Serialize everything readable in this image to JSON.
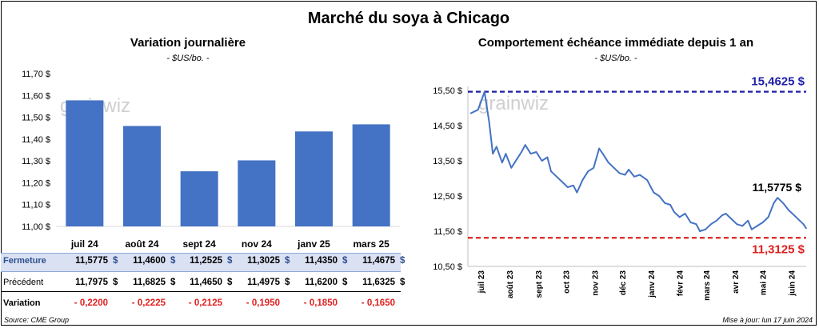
{
  "title": "Marché du soya à Chicago",
  "left": {
    "title": "Variation journalière",
    "units": "- $US/bo. -"
  },
  "right": {
    "title": "Comportement  échéance immédiate depuis 1 an",
    "units": "- $US/bo. -",
    "high_label": "15,4625 $",
    "low_label": "11,3125 $",
    "last_label": "11,5775 $"
  },
  "table": {
    "row_labels": [
      "Fermeture",
      "Précédent",
      "Variation"
    ],
    "currency": "$",
    "fermeture": [
      "11,5775",
      "11,4600",
      "11,2525",
      "11,3025",
      "11,4350",
      "11,4675"
    ],
    "precedent": [
      "11,7975",
      "11,6825",
      "11,4650",
      "11,4975",
      "11,6200",
      "11,6325"
    ],
    "variation": [
      "- 0,2200",
      "- 0,2225",
      "- 0,2125",
      "- 0,1950",
      "- 0,1850",
      "- 0,1650"
    ]
  },
  "watermark": "grainwiz",
  "source": "Source: CME Group",
  "updated": "Mise à jour: lun 17 juin 2024",
  "colors": {
    "bar": "#4472C4",
    "line": "#4472C4",
    "high": "#1F1FA8",
    "low": "#E02020",
    "table_band": "#D9E1F2"
  },
  "chart_data": [
    {
      "type": "bar",
      "title": "Variation journalière",
      "ylabel": "$US/bo.",
      "categories": [
        "juil 24",
        "août 24",
        "sept 24",
        "nov 24",
        "janv 25",
        "mars 25"
      ],
      "values": [
        11.5775,
        11.46,
        11.2525,
        11.3025,
        11.435,
        11.4675
      ],
      "ylim": [
        11.0,
        11.7
      ],
      "yticks": [
        "11,00 $",
        "11,10 $",
        "11,20 $",
        "11,30 $",
        "11,40 $",
        "11,50 $",
        "11,60 $",
        "11,70 $"
      ],
      "grid": false
    },
    {
      "type": "line",
      "title": "Comportement  échéance immédiate depuis 1 an",
      "ylabel": "$US/bo.",
      "ylim": [
        10.5,
        15.5
      ],
      "yticks": [
        "10,50 $",
        "11,50 $",
        "12,50 $",
        "13,50 $",
        "14,50 $",
        "15,50 $"
      ],
      "xticks": [
        "juil 23",
        "août 23",
        "sept 23",
        "oct 23",
        "nov 23",
        "déc 23",
        "janv 24",
        "févr 24",
        "mars 24",
        "avr 24",
        "mai 24",
        "juin 24"
      ],
      "x": [
        "2023-06-20",
        "2023-06-28",
        "2023-07-05",
        "2023-07-10",
        "2023-07-14",
        "2023-07-18",
        "2023-07-24",
        "2023-07-28",
        "2023-08-03",
        "2023-08-09",
        "2023-08-14",
        "2023-08-18",
        "2023-08-24",
        "2023-08-30",
        "2023-09-05",
        "2023-09-11",
        "2023-09-15",
        "2023-09-21",
        "2023-09-27",
        "2023-10-03",
        "2023-10-09",
        "2023-10-13",
        "2023-10-19",
        "2023-10-25",
        "2023-10-31",
        "2023-11-06",
        "2023-11-10",
        "2023-11-16",
        "2023-11-22",
        "2023-11-28",
        "2023-12-04",
        "2023-12-08",
        "2023-12-14",
        "2023-12-20",
        "2023-12-28",
        "2024-01-04",
        "2024-01-10",
        "2024-01-16",
        "2024-01-22",
        "2024-01-26",
        "2024-02-01",
        "2024-02-07",
        "2024-02-13",
        "2024-02-19",
        "2024-02-23",
        "2024-02-29",
        "2024-03-06",
        "2024-03-12",
        "2024-03-18",
        "2024-03-22",
        "2024-03-28",
        "2024-04-03",
        "2024-04-09",
        "2024-04-15",
        "2024-04-19",
        "2024-04-25",
        "2024-05-01",
        "2024-05-07",
        "2024-05-13",
        "2024-05-17",
        "2024-05-23",
        "2024-05-29",
        "2024-06-04",
        "2024-06-10",
        "2024-06-14",
        "2024-06-17"
      ],
      "values": [
        14.85,
        14.95,
        15.46,
        14.6,
        13.7,
        13.9,
        13.45,
        13.7,
        13.3,
        13.55,
        13.75,
        13.95,
        13.7,
        13.75,
        13.5,
        13.6,
        13.2,
        13.05,
        12.9,
        12.75,
        12.8,
        12.6,
        12.95,
        13.2,
        13.3,
        13.85,
        13.7,
        13.45,
        13.3,
        13.15,
        13.1,
        13.25,
        13.05,
        13.1,
        12.95,
        12.6,
        12.5,
        12.3,
        12.25,
        12.05,
        11.9,
        12.0,
        11.75,
        11.7,
        11.5,
        11.55,
        11.7,
        11.8,
        11.95,
        12.0,
        11.85,
        11.7,
        11.65,
        11.8,
        11.55,
        11.65,
        11.75,
        11.9,
        12.3,
        12.45,
        12.3,
        12.1,
        11.95,
        11.8,
        11.7,
        11.58
      ],
      "reference_lines": [
        {
          "value": 15.4625,
          "label": "15,4625 $"
        },
        {
          "value": 11.3125,
          "label": "11,3125 $"
        }
      ],
      "last": {
        "value": 11.5775,
        "label": "11,5775 $"
      }
    }
  ]
}
